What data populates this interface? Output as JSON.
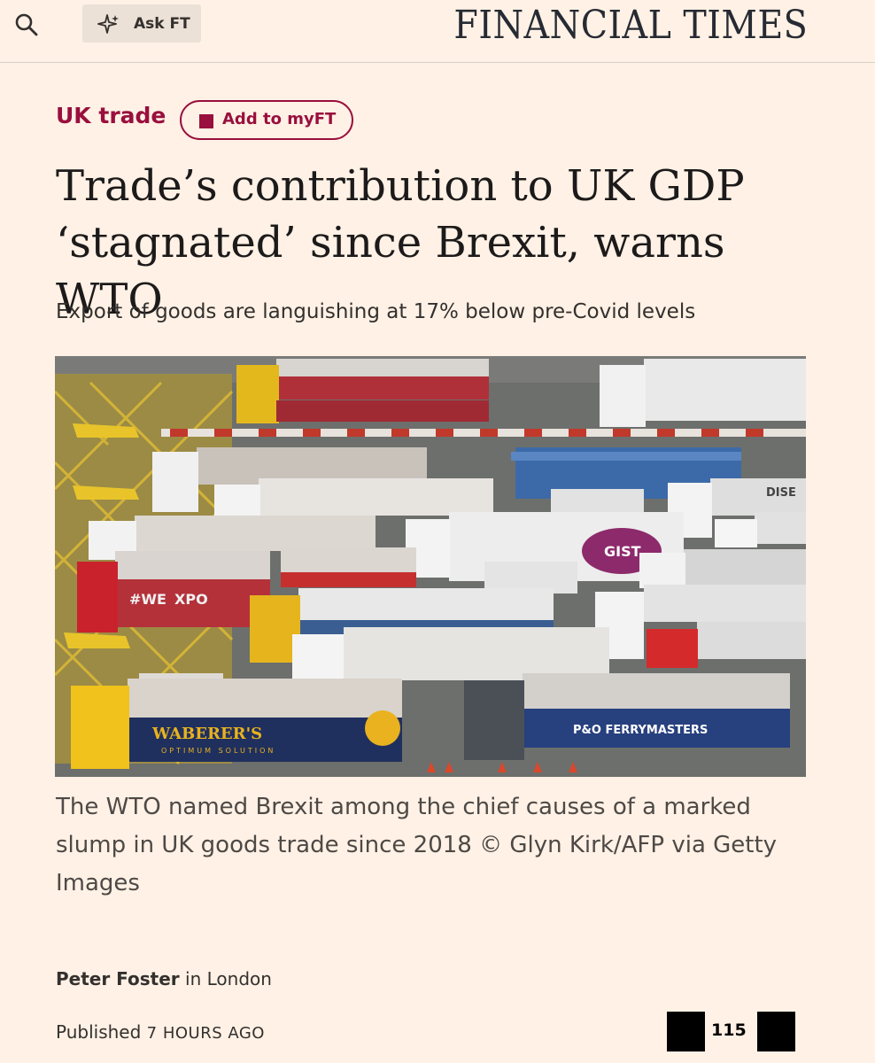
{
  "header": {
    "search_icon": "search-icon",
    "ask_ft_icon": "sparkle-icon",
    "ask_ft_label": "Ask FT",
    "masthead": "FINANCIAL TIMES"
  },
  "article": {
    "topic": "UK trade",
    "myft_label": "Add to myFT",
    "headline_line1": "Trade’s contribution to UK GDP",
    "headline_line2": "‘stagnated’ since Brexit, warns WTO",
    "standfirst": "Export of goods are languishing at 17% below pre-Covid levels",
    "image_text": {
      "truck1": "#WE",
      "truck1b": "XPO",
      "waberers": "WABERER'S",
      "waberers_sub": "OPTIMUM SOLUTION",
      "ferrymasters": "P&O FERRYMASTERS",
      "gist": "GIST",
      "dise": "DISE"
    },
    "caption": "The WTO named Brexit among the chief causes of a marked slump in UK goods trade since 2018 © Glyn Kirk/AFP via Getty Images",
    "author": "Peter Foster",
    "location": " in London",
    "published_label": "Published ",
    "published_time": "7 HOURS AGO",
    "comment_count": "115"
  },
  "colors": {
    "background": "#fff1e5",
    "claret": "#990f3d",
    "text": "#33302e"
  }
}
